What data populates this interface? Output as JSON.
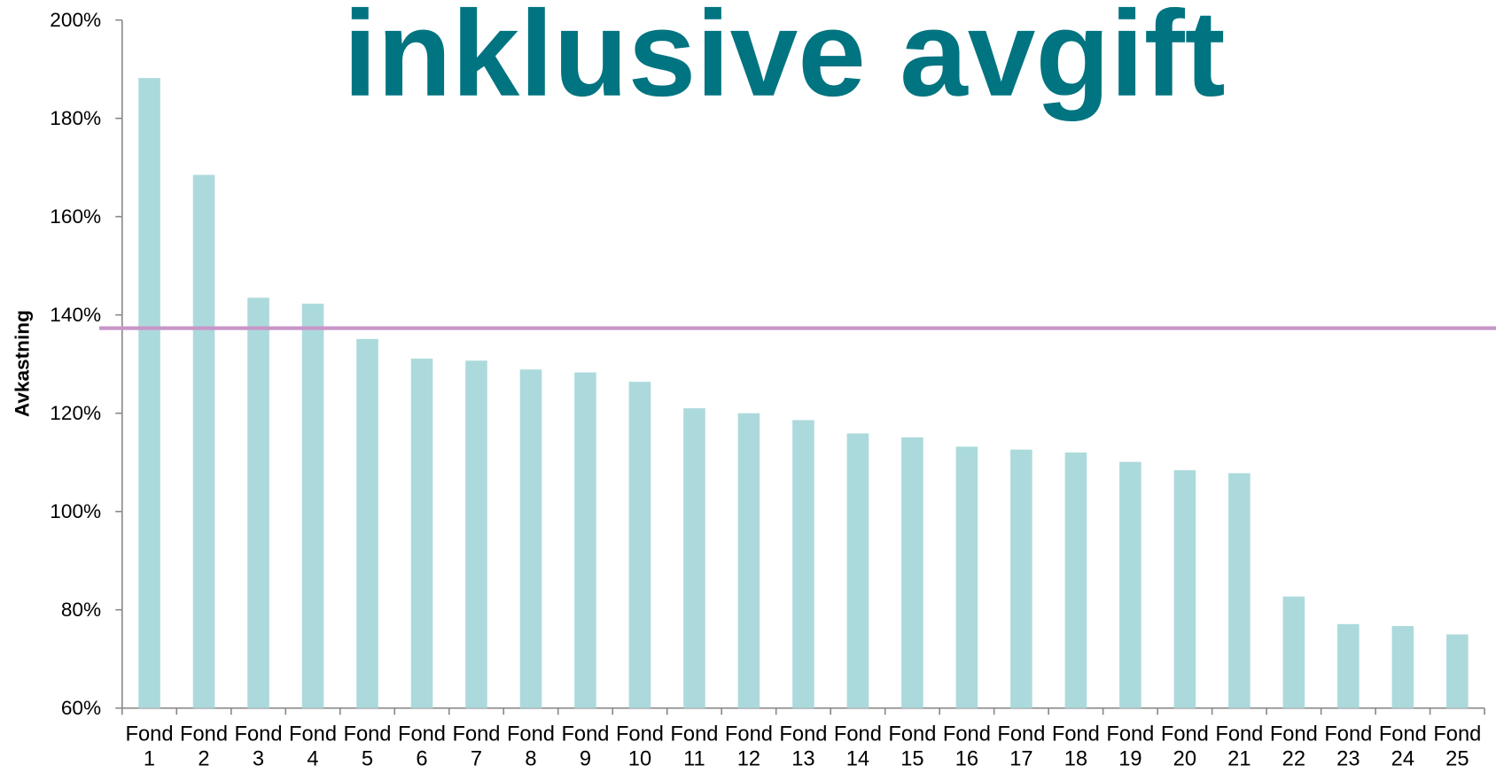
{
  "chart_data": {
    "type": "bar",
    "title": "inklusive avgift",
    "y_label": "Avkastning",
    "categories": [
      "Fond 1",
      "Fond 2",
      "Fond 3",
      "Fond 4",
      "Fond 5",
      "Fond 6",
      "Fond 7",
      "Fond 8",
      "Fond 9",
      "Fond 10",
      "Fond 11",
      "Fond 12",
      "Fond 13",
      "Fond 14",
      "Fond 15",
      "Fond 16",
      "Fond 17",
      "Fond 18",
      "Fond 19",
      "Fond 20",
      "Fond 21",
      "Fond 22",
      "Fond 23",
      "Fond 24",
      "Fond 25"
    ],
    "values": [
      188.2,
      168.5,
      143.5,
      142.3,
      135.1,
      131.1,
      130.7,
      128.9,
      128.3,
      126.4,
      121,
      120,
      118.6,
      115.9,
      115.1,
      113.2,
      112.6,
      112,
      110.1,
      108.4,
      107.8,
      82.7,
      77.1,
      76.7,
      75
    ],
    "color": "#acdadc",
    "ylim": [
      60,
      200
    ],
    "yticks": [
      {
        "value": 60,
        "label": "60%"
      },
      {
        "value": 80,
        "label": "80%"
      },
      {
        "value": 100,
        "label": "100%"
      },
      {
        "value": 120,
        "label": "120%"
      },
      {
        "value": 140,
        "label": "140%"
      },
      {
        "value": 160,
        "label": "160%"
      },
      {
        "value": 180,
        "label": "180%"
      },
      {
        "value": 200,
        "label": "200%"
      }
    ],
    "reference_line": 137.3,
    "reference_color": "#c896c8",
    "title_color": "#007480"
  }
}
